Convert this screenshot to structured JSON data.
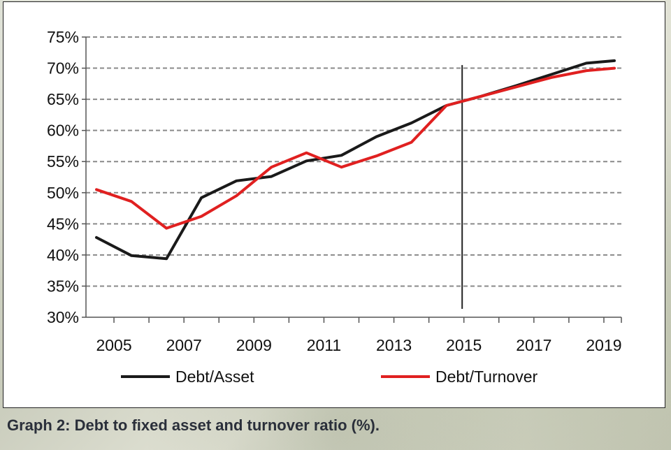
{
  "caption": "Graph 2: Debt to fixed asset and turnover ratio (%).",
  "chart_data": {
    "type": "line",
    "title": "",
    "xlabel": "",
    "ylabel": "",
    "ylim": [
      30,
      75
    ],
    "xlim": [
      2004.2,
      2019.5
    ],
    "y_ticks": [
      "30%",
      "35%",
      "40%",
      "45%",
      "50%",
      "55%",
      "60%",
      "65%",
      "70%",
      "75%"
    ],
    "x_tick_labels": [
      "2005",
      "2007",
      "2009",
      "2011",
      "2013",
      "2015",
      "2017",
      "2019"
    ],
    "grid": "horizontal-dashed",
    "legend_position": "bottom",
    "vertical_marker_x": 2014.95,
    "series": [
      {
        "name": "Debt/Asset",
        "color": "#1a1a1a",
        "x": [
          2004.5,
          2005.5,
          2006.5,
          2007.5,
          2008.5,
          2009.5,
          2010.5,
          2011.5,
          2012.5,
          2013.5,
          2014.5,
          2015.5,
          2016.5,
          2017.5,
          2018.5,
          2019.3
        ],
        "values": [
          42.8,
          39.9,
          39.4,
          49.2,
          51.9,
          52.6,
          55.1,
          56.0,
          59.0,
          61.2,
          64.0,
          65.5,
          67.2,
          69.0,
          70.8,
          71.2
        ]
      },
      {
        "name": "Debt/Turnover",
        "color": "#e02020",
        "x": [
          2004.5,
          2005.5,
          2006.5,
          2007.5,
          2008.5,
          2009.5,
          2010.5,
          2011.5,
          2012.5,
          2013.5,
          2014.5,
          2015.5,
          2016.5,
          2017.5,
          2018.5,
          2019.3
        ],
        "values": [
          50.5,
          48.6,
          44.3,
          46.2,
          49.5,
          54.1,
          56.4,
          54.1,
          55.9,
          58.1,
          64.0,
          65.5,
          67.0,
          68.5,
          69.6,
          70.0
        ]
      }
    ]
  }
}
